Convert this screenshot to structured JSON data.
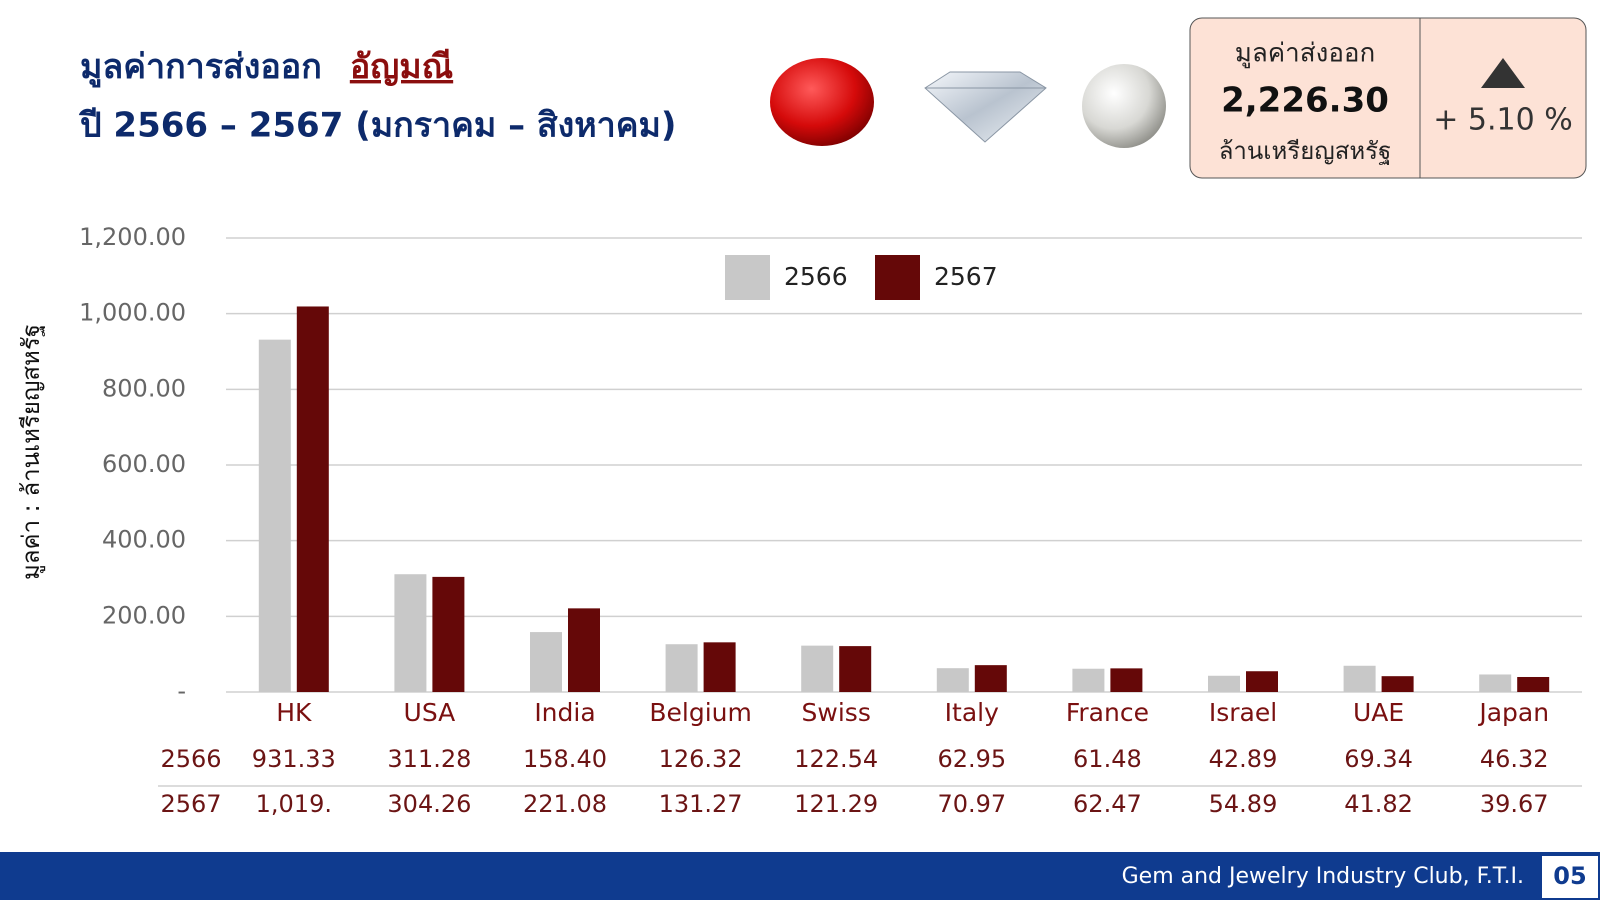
{
  "header": {
    "title_prefix": "มูลค่าการส่งออก",
    "title_highlight": "อัญมณี",
    "subtitle": "ปี 2566 – 2567 (มกราคม – สิงหาคม)"
  },
  "kpi": {
    "label": "มูลค่าส่งออก",
    "value": "2,226.30",
    "unit": "ล้านเหรียญสหรัฐ",
    "change": "+ 5.10 %"
  },
  "footer": {
    "text": "Gem and Jewelry Industry Club, F.T.I.",
    "page": "05"
  },
  "chart_data": {
    "type": "bar",
    "y_label": "มูลค่า : ล้านเหรียญสหรัฐ",
    "categories": [
      "HK",
      "USA",
      "India",
      "Belgium",
      "Swiss",
      "Italy",
      "France",
      "Israel",
      "UAE",
      "Japan"
    ],
    "series": [
      {
        "name": "2566",
        "color": "#c8c8c8",
        "values": [
          931.33,
          311.28,
          158.4,
          126.32,
          122.54,
          62.95,
          61.48,
          42.89,
          69.34,
          46.32
        ],
        "value_labels": [
          "931.33",
          "311.28",
          "158.40",
          "126.32",
          "122.54",
          "62.95",
          "61.48",
          "42.89",
          "69.34",
          "46.32"
        ]
      },
      {
        "name": "2567",
        "color": "#650808",
        "values": [
          1019,
          304.26,
          221.08,
          131.27,
          121.29,
          70.97,
          62.47,
          54.89,
          41.82,
          39.67
        ],
        "value_labels": [
          "1,019.",
          "304.26",
          "221.08",
          "131.27",
          "121.29",
          "70.97",
          "62.47",
          "54.89",
          "41.82",
          "39.67"
        ]
      }
    ],
    "ylim": [
      0,
      1200
    ],
    "yticks": [
      {
        "value": 0,
        "label": "-"
      },
      {
        "value": 200,
        "label": "200.00"
      },
      {
        "value": 400,
        "label": "400.00"
      },
      {
        "value": 600,
        "label": "600.00"
      },
      {
        "value": 800,
        "label": "800.00"
      },
      {
        "value": 1000,
        "label": "1,000.00"
      },
      {
        "value": 1200,
        "label": "1,200.00"
      }
    ],
    "grid": true,
    "legend": "top"
  }
}
